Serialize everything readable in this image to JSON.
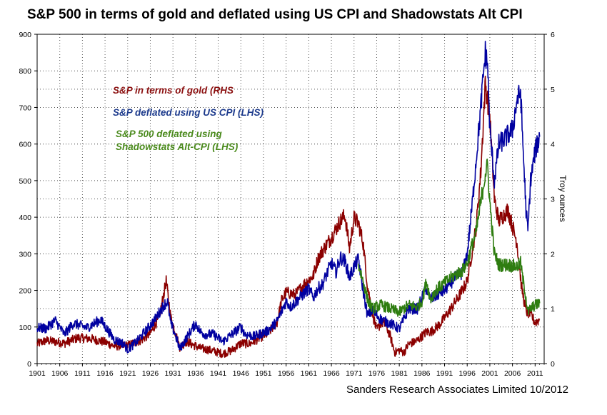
{
  "title": "S&P 500 in terms of gold and deflated using US CPI and Shadowstats Alt CPI",
  "credit": "Sanders Research Associates Limited 10/2012",
  "chart_data": {
    "type": "line",
    "grid": true,
    "x_range": [
      1901,
      2013
    ],
    "x_tick_labels": [
      "1901",
      "1906",
      "1911",
      "1916",
      "1921",
      "1926",
      "1931",
      "1936",
      "1941",
      "1946",
      "1951",
      "1956",
      "1961",
      "1966",
      "1971",
      "1976",
      "1981",
      "1986",
      "1991",
      "1996",
      "2001",
      "2006",
      "2011"
    ],
    "left_axis": {
      "label": "",
      "range": [
        0,
        900
      ],
      "ticks": [
        "0",
        "100",
        "200",
        "300",
        "400",
        "500",
        "600",
        "700",
        "800",
        "900"
      ]
    },
    "right_axis": {
      "label": "Troy ounces",
      "range": [
        0,
        6
      ],
      "ticks": [
        "0",
        "1",
        "2",
        "3",
        "4",
        "5",
        "6"
      ]
    },
    "annotations": [
      {
        "text": "S&P in terms of gold (RHS",
        "color": "#8b1010"
      },
      {
        "text": "S&P deflated using US CPI (LHS)",
        "color": "#1c3a8c"
      },
      {
        "text": "S&P 500 deflated using",
        "color": "#4a8a1c"
      },
      {
        "text": "Shadowstats Alt-CPI (LHS)",
        "color": "#4a8a1c"
      }
    ],
    "series": [
      {
        "name": "S&P in terms of gold (RHS",
        "axis": "right",
        "color": "#8b0000",
        "x": [
          1901,
          1903,
          1905,
          1907,
          1910,
          1913,
          1916,
          1918,
          1921,
          1924,
          1926,
          1928,
          1929.5,
          1930.5,
          1932.5,
          1934,
          1937,
          1939,
          1942,
          1944,
          1946,
          1948,
          1950,
          1952,
          1954,
          1955,
          1956,
          1958,
          1960,
          1962,
          1963,
          1964,
          1966,
          1968,
          1969,
          1970,
          1971,
          1972,
          1973,
          1974,
          1975,
          1976,
          1977,
          1978,
          1979,
          1980,
          1981,
          1982,
          1983,
          1985,
          1987,
          1988,
          1990,
          1992,
          1994,
          1996,
          1997,
          1998,
          1999,
          2000,
          2001,
          2002,
          2003,
          2005,
          2007,
          2008,
          2009,
          2010,
          2011,
          2012
        ],
        "y": [
          0.36,
          0.42,
          0.4,
          0.37,
          0.47,
          0.45,
          0.39,
          0.32,
          0.33,
          0.43,
          0.55,
          0.85,
          1.5,
          0.85,
          0.3,
          0.4,
          0.28,
          0.25,
          0.18,
          0.24,
          0.37,
          0.36,
          0.46,
          0.55,
          0.75,
          1.15,
          1.3,
          1.25,
          1.45,
          1.6,
          1.9,
          2.05,
          2.3,
          2.6,
          2.7,
          2.1,
          2.65,
          2.55,
          2.2,
          1.4,
          0.95,
          0.6,
          0.75,
          0.7,
          0.5,
          0.2,
          0.25,
          0.2,
          0.35,
          0.42,
          0.58,
          0.58,
          0.72,
          0.95,
          1.2,
          1.5,
          2.0,
          2.5,
          3.5,
          5.1,
          4.5,
          3.0,
          2.6,
          2.8,
          2.2,
          1.4,
          0.95,
          0.9,
          0.75,
          0.8
        ]
      },
      {
        "name": "S&P deflated using US CPI (LHS)",
        "axis": "left",
        "color": "#0000a0",
        "x": [
          1901,
          1903,
          1905,
          1907,
          1909,
          1912,
          1915,
          1917,
          1918,
          1920,
          1921,
          1923,
          1925,
          1927,
          1929,
          1929.8,
          1930.5,
          1931.5,
          1932.5,
          1934,
          1936,
          1937,
          1938,
          1940,
          1942,
          1944,
          1946,
          1947,
          1949,
          1952,
          1954,
          1956,
          1957,
          1959,
          1961,
          1962,
          1963,
          1964,
          1966,
          1967,
          1968,
          1969,
          1970,
          1971,
          1972,
          1973,
          1974,
          1975,
          1977,
          1979,
          1981,
          1982,
          1983,
          1985,
          1986,
          1987,
          1987.9,
          1989,
          1991,
          1993,
          1995,
          1996,
          1997,
          1998,
          1999,
          2000,
          2000.5,
          2001,
          2002,
          2003,
          2004,
          2006,
          2007,
          2007.8,
          2008.3,
          2009,
          2009.4,
          2010,
          2011,
          2012
        ],
        "y": [
          98,
          96,
          118,
          80,
          110,
          98,
          120,
          84,
          66,
          55,
          38,
          60,
          90,
          120,
          160,
          170,
          110,
          80,
          40,
          70,
          110,
          88,
          80,
          80,
          60,
          80,
          100,
          80,
          74,
          90,
          115,
          170,
          155,
          180,
          205,
          180,
          205,
          215,
          275,
          250,
          290,
          280,
          235,
          265,
          285,
          200,
          130,
          145,
          120,
          110,
          95,
          120,
          150,
          150,
          180,
          205,
          175,
          185,
          200,
          230,
          250,
          300,
          420,
          560,
          700,
          850,
          820,
          640,
          500,
          600,
          610,
          640,
          720,
          740,
          600,
          420,
          360,
          500,
          580,
          620
        ]
      },
      {
        "name": "S&P 500 deflated using Shadowstats Alt-CPI (LHS)",
        "axis": "left",
        "color": "#2e7d10",
        "x": [
          1972,
          1973,
          1974,
          1975,
          1977,
          1979,
          1981,
          1982,
          1983,
          1985,
          1986,
          1987,
          1987.9,
          1989,
          1991,
          1993,
          1995,
          1996,
          1997,
          1998,
          1999,
          2000,
          2000.5,
          2001,
          2002,
          2003,
          2005,
          2007,
          2007.8,
          2008.3,
          2009,
          2009.4,
          2010,
          2011,
          2012
        ],
        "y": [
          270,
          225,
          175,
          150,
          160,
          150,
          140,
          150,
          160,
          155,
          170,
          225,
          175,
          200,
          220,
          240,
          255,
          275,
          320,
          360,
          440,
          520,
          540,
          440,
          300,
          270,
          270,
          265,
          275,
          230,
          180,
          140,
          150,
          160,
          165
        ]
      }
    ]
  }
}
